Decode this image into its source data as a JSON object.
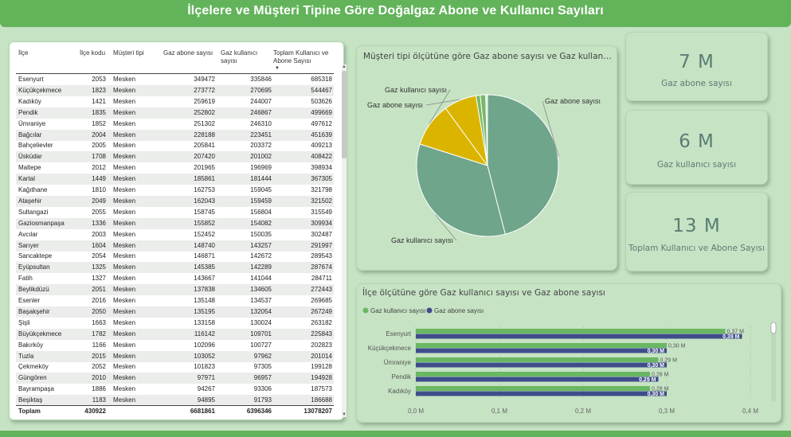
{
  "header": {
    "title": "İlçelere ve Müşteri Tipine Göre Doğalgaz Abone ve Kullanıcı Sayıları"
  },
  "table": {
    "columns": [
      "İlçe",
      "İlçe kodu",
      "Müşteri tipi",
      "Gaz abone sayısı",
      "Gaz kullanıcı sayısı",
      "Toplam Kullanıcı ve Abone Sayısı"
    ],
    "rows": [
      [
        "Esenyurt",
        "2053",
        "Mesken",
        "349472",
        "335846",
        "685318"
      ],
      [
        "Küçükçekmece",
        "1823",
        "Mesken",
        "273772",
        "270695",
        "544467"
      ],
      [
        "Kadıköy",
        "1421",
        "Mesken",
        "259619",
        "244007",
        "503626"
      ],
      [
        "Pendik",
        "1835",
        "Mesken",
        "252802",
        "246867",
        "499669"
      ],
      [
        "Ümraniye",
        "1852",
        "Mesken",
        "251302",
        "246310",
        "497612"
      ],
      [
        "Bağcılar",
        "2004",
        "Mesken",
        "228188",
        "223451",
        "451639"
      ],
      [
        "Bahçelievler",
        "2005",
        "Mesken",
        "205841",
        "203372",
        "409213"
      ],
      [
        "Üsküdar",
        "1708",
        "Mesken",
        "207420",
        "201002",
        "408422"
      ],
      [
        "Maltepe",
        "2012",
        "Mesken",
        "201965",
        "196969",
        "398934"
      ],
      [
        "Kartal",
        "1449",
        "Mesken",
        "185861",
        "181444",
        "367305"
      ],
      [
        "Kağıthane",
        "1810",
        "Mesken",
        "162753",
        "159045",
        "321798"
      ],
      [
        "Ataşehir",
        "2049",
        "Mesken",
        "162043",
        "159459",
        "321502"
      ],
      [
        "Sultangazi",
        "2055",
        "Mesken",
        "158745",
        "156804",
        "315549"
      ],
      [
        "Gaziosmanpaşa",
        "1336",
        "Mesken",
        "155852",
        "154082",
        "309934"
      ],
      [
        "Avcılar",
        "2003",
        "Mesken",
        "152452",
        "150035",
        "302487"
      ],
      [
        "Sarıyer",
        "1604",
        "Mesken",
        "148740",
        "143257",
        "291997"
      ],
      [
        "Sancaktepe",
        "2054",
        "Mesken",
        "146871",
        "142672",
        "289543"
      ],
      [
        "Eyüpsultan",
        "1325",
        "Mesken",
        "145385",
        "142289",
        "287674"
      ],
      [
        "Fatih",
        "1327",
        "Mesken",
        "143667",
        "141044",
        "284711"
      ],
      [
        "Beylikdüzü",
        "2051",
        "Mesken",
        "137838",
        "134605",
        "272443"
      ],
      [
        "Esenler",
        "2016",
        "Mesken",
        "135148",
        "134537",
        "269685"
      ],
      [
        "Başakşehir",
        "2050",
        "Mesken",
        "135195",
        "132054",
        "267249"
      ],
      [
        "Şişli",
        "1663",
        "Mesken",
        "133158",
        "130024",
        "263182"
      ],
      [
        "Büyükçekmece",
        "1782",
        "Mesken",
        "116142",
        "109701",
        "225843"
      ],
      [
        "Bakırköy",
        "1166",
        "Mesken",
        "102096",
        "100727",
        "202823"
      ],
      [
        "Tuzla",
        "2015",
        "Mesken",
        "103052",
        "97962",
        "201014"
      ],
      [
        "Çekmeköy",
        "2052",
        "Mesken",
        "101823",
        "97305",
        "199128"
      ],
      [
        "Güngören",
        "2010",
        "Mesken",
        "97971",
        "96957",
        "194928"
      ],
      [
        "Bayrampaşa",
        "1886",
        "Mesken",
        "94267",
        "93306",
        "187573"
      ],
      [
        "Beşiktaş",
        "1183",
        "Mesken",
        "94895",
        "91793",
        "186688"
      ]
    ],
    "total": {
      "label": "Toplam",
      "code": "430922",
      "abone": "6681861",
      "kullanici": "6396346",
      "toplam": "13078207"
    }
  },
  "pie": {
    "title": "Müşteri tipi ölçütüne göre Gaz abone sayısı ve Gaz kullanıcı s...",
    "labels": [
      "Gaz abone sayısı",
      "Gaz kullanıcı sayısı",
      "Gaz abone sayısı",
      "Gaz kullanıcı sayısı"
    ]
  },
  "kpis": [
    {
      "value": "7 M",
      "label": "Gaz abone sayısı"
    },
    {
      "value": "6 M",
      "label": "Gaz kullanıcı sayısı"
    },
    {
      "value": "13 M",
      "label": "Toplam Kullanıcı ve Abone Sayısı"
    }
  ],
  "bar": {
    "title": "İlçe ölçütüne göre Gaz kullanıcı sayısı ve Gaz abone sayısı",
    "legend": [
      "Gaz kullanıcı sayısı",
      "Gaz abone sayısı"
    ]
  },
  "colors": {
    "header": "#62b35a",
    "pie_green": "#6fa58b",
    "pie_yellow": "#dbb400",
    "pie_light_green": "#79b866",
    "bar_green": "#6ab763",
    "bar_navy": "#3f4d8a",
    "kpi_text": "#5b7d73"
  },
  "chart_data": [
    {
      "type": "pie",
      "title": "Müşteri tipi ölçütüne göre Gaz abone sayısı ve Gaz kullanıcı s...",
      "slices": [
        {
          "label": "Gaz abone sayısı",
          "value": 6681861,
          "color": "#6fa58b"
        },
        {
          "label": "Gaz kullanıcı sayısı",
          "value": 4930000,
          "color": "#6fa58b"
        },
        {
          "label": "Gaz kullanıcı sayısı",
          "value": 1460000,
          "color": "#dbb400"
        },
        {
          "label": "Gaz abone sayısı",
          "value": 1080000,
          "color": "#dbb400"
        },
        {
          "label": "",
          "value": 140000,
          "color": "#79b866"
        },
        {
          "label": "",
          "value": 180000,
          "color": "#79b866"
        },
        {
          "label": "",
          "value": 60000,
          "color": "#d9ecd6"
        }
      ]
    },
    {
      "type": "bar",
      "orientation": "horizontal",
      "title": "İlçe ölçütüne göre Gaz kullanıcı sayısı ve Gaz abone sayısı",
      "categories": [
        "Esenyurt",
        "Küçükçekmece",
        "Ümraniye",
        "Pendik",
        "Kadıköy"
      ],
      "series": [
        {
          "name": "Gaz kullanıcı sayısı",
          "values": [
            0.37,
            0.3,
            0.29,
            0.28,
            0.28
          ],
          "labels": [
            "0,37 M",
            "0,30 M",
            "0,29 M",
            "0,28 M",
            "0,28 M"
          ]
        },
        {
          "name": "Gaz abone sayısı",
          "values": [
            0.39,
            0.3,
            0.3,
            0.29,
            0.3
          ],
          "labels": [
            "0,39 M",
            "0,30 M",
            "0,30 M",
            "0,29 M",
            "0,30 M"
          ]
        }
      ],
      "xlim": [
        0,
        0.4
      ],
      "xticks": [
        "0,0 M",
        "0,1 M",
        "0,2 M",
        "0,3 M",
        "0,4 M"
      ],
      "legend_position": "top-left"
    }
  ]
}
